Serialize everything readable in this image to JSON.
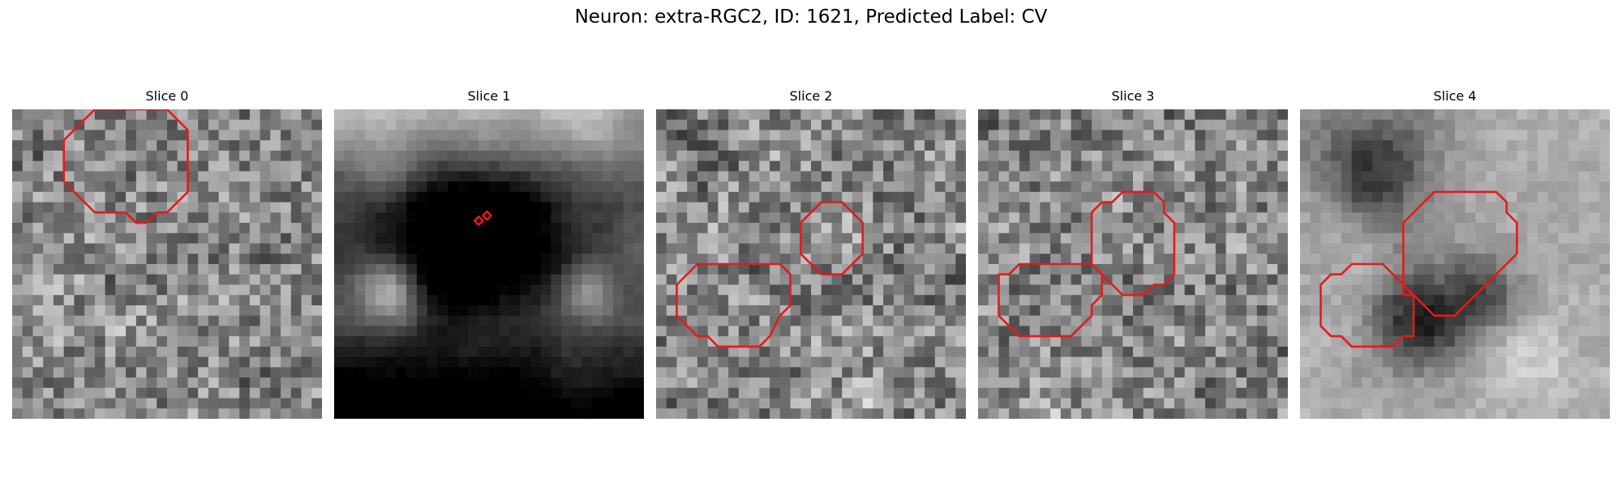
{
  "title": "Neuron: extra-RGC2, ID: 1621, Predicted Label: CV",
  "contour_color": "#e41a1c",
  "panels": [
    {
      "label": "Slice 0",
      "tone": "medium",
      "contours": [
        [
          [
            8,
            0
          ],
          [
            5,
            3
          ],
          [
            5,
            7
          ],
          [
            8,
            10
          ],
          [
            11,
            10
          ],
          [
            12,
            11
          ],
          [
            13,
            11
          ],
          [
            14,
            10
          ],
          [
            15,
            10
          ],
          [
            17,
            8
          ],
          [
            17,
            2
          ],
          [
            15,
            0
          ]
        ]
      ]
    },
    {
      "label": "Slice 1",
      "tone": "dark",
      "contours": [
        [
          [
            13.6,
            10.8
          ],
          [
            14,
            10.4
          ],
          [
            14.4,
            10.8
          ],
          [
            14,
            11.2
          ]
        ],
        [
          [
            14.4,
            10.3
          ],
          [
            14.8,
            9.9
          ],
          [
            15.2,
            10.3
          ],
          [
            14.8,
            10.7
          ]
        ]
      ]
    },
    {
      "label": "Slice 2",
      "tone": "medium",
      "contours": [
        [
          [
            16,
            9
          ],
          [
            18,
            9
          ],
          [
            20,
            11
          ],
          [
            20,
            14
          ],
          [
            18,
            16
          ],
          [
            16,
            16
          ],
          [
            14,
            14
          ],
          [
            14,
            11
          ]
        ],
        [
          [
            4,
            15
          ],
          [
            12,
            15
          ],
          [
            13,
            16
          ],
          [
            13,
            19
          ],
          [
            12,
            20
          ],
          [
            11,
            22
          ],
          [
            10,
            23
          ],
          [
            6,
            23
          ],
          [
            5,
            22
          ],
          [
            4,
            22
          ],
          [
            2,
            20
          ],
          [
            2,
            17
          ]
        ]
      ]
    },
    {
      "label": "Slice 3",
      "tone": "medium",
      "contours": [
        [
          [
            13,
            9
          ],
          [
            14,
            8
          ],
          [
            17,
            8
          ],
          [
            18,
            9
          ],
          [
            18,
            10
          ],
          [
            19,
            11
          ],
          [
            19,
            16
          ],
          [
            18,
            17
          ],
          [
            17,
            17
          ],
          [
            16,
            18
          ],
          [
            14,
            18
          ],
          [
            13,
            17
          ],
          [
            12,
            16
          ],
          [
            11,
            15
          ],
          [
            11,
            10
          ],
          [
            12,
            9
          ]
        ],
        [
          [
            5,
            15
          ],
          [
            11,
            15
          ],
          [
            12,
            16
          ],
          [
            12,
            18
          ],
          [
            11,
            19
          ],
          [
            11,
            20
          ],
          [
            10,
            21
          ],
          [
            9,
            22
          ],
          [
            4,
            22
          ],
          [
            3,
            21
          ],
          [
            2,
            20
          ],
          [
            2,
            16
          ],
          [
            3,
            16
          ],
          [
            4,
            15
          ]
        ]
      ]
    },
    {
      "label": "Slice 4",
      "tone": "light-dark-blob",
      "contours": [
        [
          [
            13,
            8
          ],
          [
            19,
            8
          ],
          [
            20,
            9
          ],
          [
            20,
            10
          ],
          [
            21,
            11
          ],
          [
            21,
            14
          ],
          [
            20,
            15
          ],
          [
            19,
            16
          ],
          [
            16,
            19
          ],
          [
            15,
            20
          ],
          [
            13,
            20
          ],
          [
            12,
            19
          ],
          [
            11,
            18
          ],
          [
            10,
            17
          ],
          [
            10,
            11
          ],
          [
            11,
            10
          ],
          [
            12,
            9
          ]
        ],
        [
          [
            5,
            15
          ],
          [
            8,
            15
          ],
          [
            9,
            16
          ],
          [
            10,
            17
          ],
          [
            10,
            18
          ],
          [
            11,
            18
          ],
          [
            11,
            22
          ],
          [
            10,
            22
          ],
          [
            9,
            23
          ],
          [
            5,
            23
          ],
          [
            4,
            22
          ],
          [
            3,
            22
          ],
          [
            2,
            21
          ],
          [
            2,
            17
          ],
          [
            3,
            16
          ],
          [
            4,
            16
          ]
        ]
      ]
    }
  ]
}
